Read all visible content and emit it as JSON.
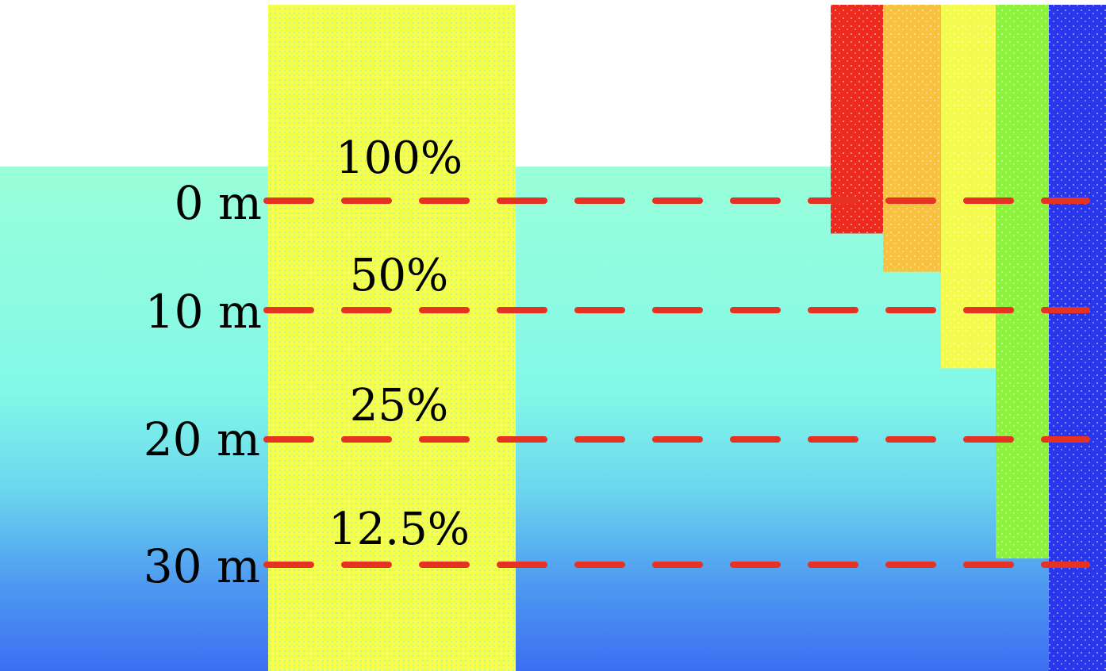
{
  "depth_levels": [
    {
      "depth": "0 m",
      "light": "100%"
    },
    {
      "depth": "10 m",
      "light": "50%"
    },
    {
      "depth": "20 m",
      "light": "25%"
    },
    {
      "depth": "30 m",
      "light": "12.5%"
    }
  ],
  "colors": {
    "water_top": "#9affd9",
    "water_mid": "#7df2ee",
    "water_bottom": "#3f78f2",
    "light_column": "#f6ff4a",
    "dash_line": "#e53222",
    "red_band": "#ee2a1e",
    "orange_band": "#f8c240",
    "yellow_band": "#f4fb4c",
    "green_band": "#8cf23c",
    "blue_band": "#2a36ec"
  },
  "spectrum_bands": [
    {
      "name": "red",
      "penetration_depth_m": 3
    },
    {
      "name": "orange",
      "penetration_depth_m": 6.5
    },
    {
      "name": "yellow",
      "penetration_depth_m": 14.5
    },
    {
      "name": "green",
      "penetration_depth_m": 29.5
    },
    {
      "name": "blue",
      "penetration_depth_m": 40
    }
  ]
}
